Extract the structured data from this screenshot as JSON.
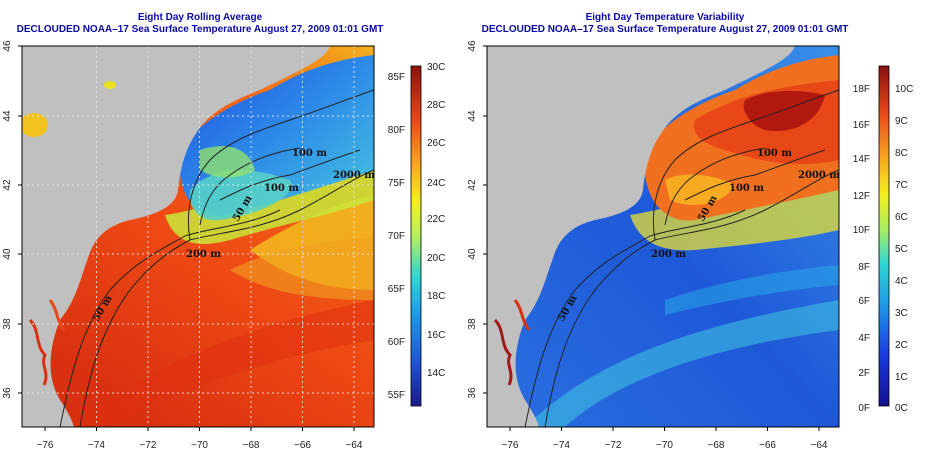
{
  "left_panel": {
    "title_line1": "Eight Day Rolling Average",
    "title_line2": "DECLOUDED NOAA–17 Sea Surface Temperature August 27, 2009 01:01 GMT",
    "colorbar_ticks_f": [
      "85F",
      "80F",
      "75F",
      "70F",
      "65F",
      "60F",
      "55F"
    ],
    "colorbar_ticks_c": [
      "30C",
      "28C",
      "26C",
      "24C",
      "22C",
      "20C",
      "18C",
      "16C",
      "14C"
    ]
  },
  "right_panel": {
    "title_line1": "Eight Day Temperature Variability",
    "title_line2": "DECLOUDED NOAA–17 Sea Surface Temperature August 27, 2009 01:01 GMT",
    "colorbar_ticks_f": [
      "18F",
      "16F",
      "14F",
      "12F",
      "10F",
      "8F",
      "6F",
      "4F",
      "2F",
      "0F"
    ],
    "colorbar_ticks_c": [
      "10C",
      "9C",
      "8C",
      "7C",
      "6C",
      "5C",
      "4C",
      "3C",
      "2C",
      "1C",
      "0C"
    ]
  },
  "x_ticks": [
    "−76",
    "−74",
    "−72",
    "−70",
    "−68",
    "−66",
    "−64"
  ],
  "y_ticks": [
    "46",
    "44",
    "42",
    "40",
    "38",
    "36"
  ],
  "contour_labels": [
    "100 m",
    "2000 m",
    "100 m",
    "50 m",
    "200 m",
    "50 m"
  ],
  "colors": {
    "land": "#c0c0c0",
    "title": "#0a0aa8",
    "grid": "#e8e8e8"
  }
}
